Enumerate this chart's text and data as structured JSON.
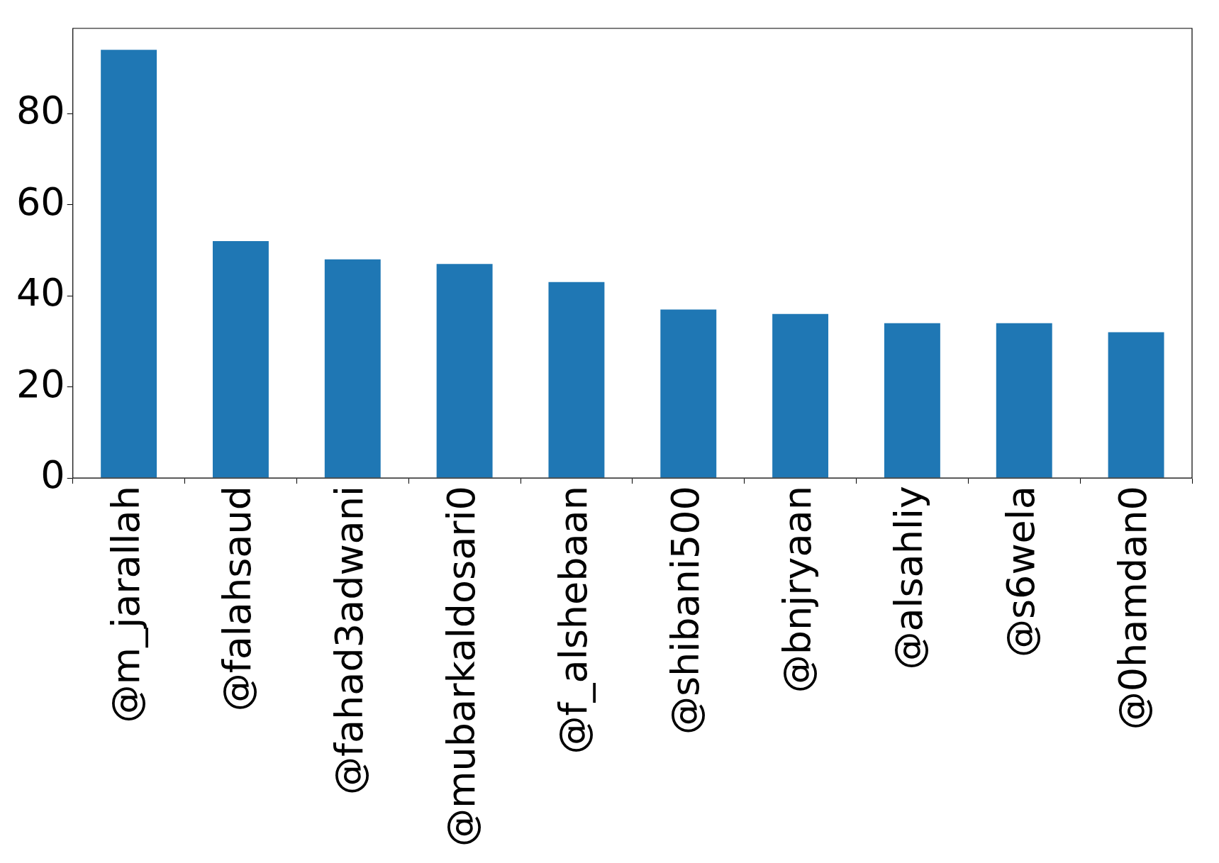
{
  "chart_data": {
    "type": "bar",
    "categories": [
      "@m_jarallah",
      "@falahsaud",
      "@fahad3adwani",
      "@mubarkaldosari0",
      "@f_alshebaan",
      "@shibani500",
      "@bnjryaan",
      "@alsahliy",
      "@s6wela",
      "@0hamdan0"
    ],
    "values": [
      94,
      52,
      48,
      47,
      43,
      37,
      36,
      34,
      34,
      32
    ],
    "color": "#1f77b4",
    "ylim": [
      0,
      98.7
    ],
    "yticks": [
      0,
      20,
      40,
      60,
      80
    ],
    "grid": false,
    "legend": false
  }
}
